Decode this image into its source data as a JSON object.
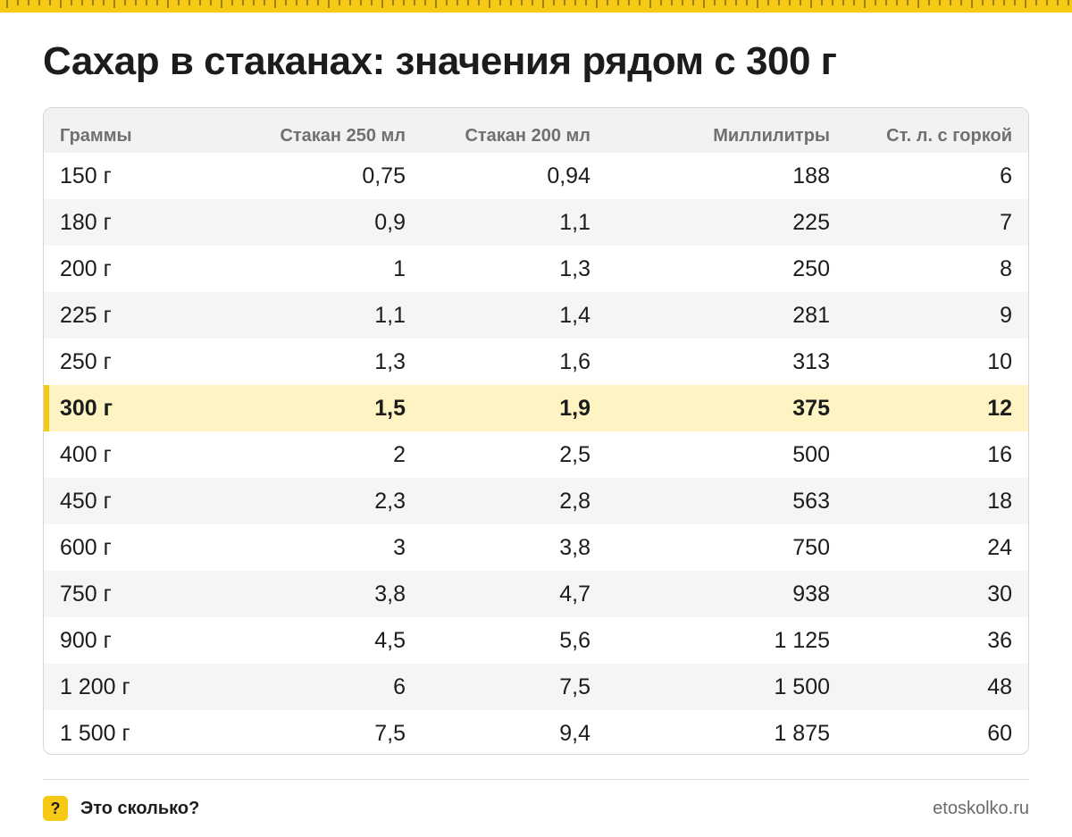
{
  "title": "Сахар в стаканах: значения рядом с 300 г",
  "colors": {
    "accent": "#f6c915",
    "highlight_row": "#fdf3c3",
    "header_bg": "#f2f2f2",
    "alt_row": "#f5f5f5"
  },
  "table": {
    "columns": [
      "Граммы",
      "Стакан 250 мл",
      "Стакан 200 мл",
      "Миллилитры",
      "Ст. л. с горкой"
    ],
    "highlighted_row": 5,
    "rows": [
      [
        "150 г",
        "0,75",
        "0,94",
        "188",
        "6"
      ],
      [
        "180 г",
        "0,9",
        "1,1",
        "225",
        "7"
      ],
      [
        "200 г",
        "1",
        "1,3",
        "250",
        "8"
      ],
      [
        "225 г",
        "1,1",
        "1,4",
        "281",
        "9"
      ],
      [
        "250 г",
        "1,3",
        "1,6",
        "313",
        "10"
      ],
      [
        "300 г",
        "1,5",
        "1,9",
        "375",
        "12"
      ],
      [
        "400 г",
        "2",
        "2,5",
        "500",
        "16"
      ],
      [
        "450 г",
        "2,3",
        "2,8",
        "563",
        "18"
      ],
      [
        "600 г",
        "3",
        "3,8",
        "750",
        "24"
      ],
      [
        "750 г",
        "3,8",
        "4,7",
        "938",
        "30"
      ],
      [
        "900 г",
        "4,5",
        "5,6",
        "1 125",
        "36"
      ],
      [
        "1 200 г",
        "6",
        "7,5",
        "1 500",
        "48"
      ],
      [
        "1 500 г",
        "7,5",
        "9,4",
        "1 875",
        "60"
      ]
    ]
  },
  "footer": {
    "badge": "?",
    "brand": "Это сколько?",
    "site": "etoskolko.ru"
  }
}
